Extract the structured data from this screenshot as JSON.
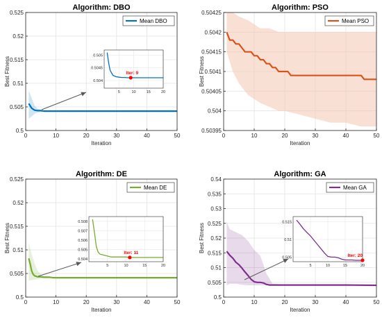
{
  "chart_data": [
    {
      "type": "line",
      "title": "Algorithm: DBO",
      "xlabel": "Iteration",
      "ylabel": "Best Fitness",
      "xlim": [
        0,
        50
      ],
      "ylim": [
        0.5,
        0.525
      ],
      "xticks": [
        0,
        10,
        20,
        30,
        40,
        50
      ],
      "yticks": [
        0.5,
        0.505,
        0.51,
        0.515,
        0.52,
        0.525
      ],
      "ytick_labels": [
        "0.5",
        "0.505",
        "0.51",
        "0.515",
        "0.52",
        "0.525"
      ],
      "legend": "top-right",
      "grid": true,
      "color": "#0072BD",
      "band_color": "#0072BD",
      "series": [
        {
          "name": "Mean DBO",
          "x": [
            1,
            2,
            3,
            4,
            5,
            6,
            7,
            8,
            9,
            10,
            12,
            15,
            20,
            25,
            30,
            35,
            40,
            45,
            50
          ],
          "y": [
            0.5057,
            0.5047,
            0.5043,
            0.5042,
            0.5042,
            0.5041,
            0.5041,
            0.5041,
            0.5041,
            0.5041,
            0.5041,
            0.5041,
            0.5041,
            0.5041,
            0.5041,
            0.5041,
            0.5041,
            0.5041,
            0.5041
          ]
        }
      ],
      "band": {
        "x": [
          1,
          2,
          3,
          4,
          5,
          6,
          8,
          10,
          20,
          30,
          40,
          50
        ],
        "lower": [
          0.5025,
          0.503,
          0.5036,
          0.5038,
          0.5039,
          0.504,
          0.504,
          0.504,
          0.504,
          0.504,
          0.504,
          0.504
        ],
        "upper": [
          0.5085,
          0.5068,
          0.5052,
          0.5046,
          0.5044,
          0.5043,
          0.5042,
          0.5042,
          0.5042,
          0.5042,
          0.5042,
          0.5042
        ]
      },
      "inset": {
        "xlim": [
          0,
          20
        ],
        "ylim": [
          0.5037,
          0.5052
        ],
        "xticks": [
          5,
          10,
          15,
          20
        ],
        "yticks": [
          0.504,
          0.5045,
          0.505
        ],
        "ytick_labels": [
          "0.504",
          "0.5045",
          "0.505"
        ],
        "x": [
          1,
          1.5,
          2,
          2.5,
          3,
          4,
          5,
          6,
          7,
          8,
          9,
          10,
          12,
          15,
          20
        ],
        "y": [
          0.5051,
          0.5047,
          0.5044,
          0.5043,
          0.5042,
          0.50415,
          0.50413,
          0.50412,
          0.50412,
          0.50411,
          0.50411,
          0.50411,
          0.50411,
          0.50411,
          0.50411
        ],
        "marker": {
          "x": 9,
          "y": 0.50411,
          "label": "Iter: 9"
        }
      }
    },
    {
      "type": "line",
      "title": "Algorithm: PSO",
      "xlabel": "Iteration",
      "ylabel": "Best Fitness",
      "xlim": [
        0,
        50
      ],
      "ylim": [
        0.50395,
        0.50425
      ],
      "xticks": [
        0,
        10,
        20,
        30,
        40,
        50
      ],
      "yticks": [
        0.50395,
        0.504,
        0.50405,
        0.5041,
        0.50415,
        0.5042,
        0.50425
      ],
      "ytick_labels": [
        "0.50395",
        "0.504",
        "0.50405",
        "0.5041",
        "0.50415",
        "0.5042",
        "0.50425"
      ],
      "legend": "top-right",
      "grid": true,
      "color": "#D95319",
      "band_color": "#F4C7B0",
      "series": [
        {
          "name": "Mean PSO",
          "x": [
            1,
            2,
            3,
            4,
            5,
            6,
            7,
            8,
            9,
            10,
            11,
            12,
            13,
            14,
            15,
            16,
            17,
            18,
            19,
            20,
            21,
            22,
            23,
            24,
            25,
            26,
            27,
            28,
            29,
            30,
            32,
            35,
            40,
            45,
            46,
            47,
            50
          ],
          "y": [
            0.5042,
            0.50418,
            0.50418,
            0.50417,
            0.50417,
            0.50416,
            0.50415,
            0.50415,
            0.50415,
            0.50414,
            0.50414,
            0.50413,
            0.50413,
            0.50412,
            0.50412,
            0.50411,
            0.50411,
            0.5041,
            0.5041,
            0.5041,
            0.5041,
            0.50409,
            0.50409,
            0.50409,
            0.50409,
            0.50409,
            0.50409,
            0.50409,
            0.50409,
            0.50409,
            0.50409,
            0.50409,
            0.50409,
            0.50409,
            0.50408,
            0.50408,
            0.50408
          ]
        }
      ],
      "band": {
        "x": [
          1,
          3,
          5,
          8,
          10,
          12,
          15,
          18,
          20,
          25,
          30,
          35,
          40,
          45,
          50
        ],
        "lower": [
          0.50415,
          0.5041,
          0.50407,
          0.50404,
          0.50403,
          0.50402,
          0.50401,
          0.504,
          0.504,
          0.50399,
          0.50398,
          0.50397,
          0.50397,
          0.50396,
          0.50396
        ],
        "upper": [
          0.50425,
          0.50425,
          0.50424,
          0.50423,
          0.50422,
          0.50421,
          0.50421,
          0.5042,
          0.5042,
          0.5042,
          0.5042,
          0.5042,
          0.5042,
          0.5042,
          0.5042
        ]
      }
    },
    {
      "type": "line",
      "title": "Algorithm: DE",
      "xlabel": "Iteration",
      "ylabel": "Best Fitness",
      "xlim": [
        0,
        50
      ],
      "ylim": [
        0.5,
        0.525
      ],
      "xticks": [
        0,
        10,
        20,
        30,
        40,
        50
      ],
      "yticks": [
        0.5,
        0.505,
        0.51,
        0.515,
        0.52,
        0.525
      ],
      "ytick_labels": [
        "0.5",
        "0.505",
        "0.51",
        "0.515",
        "0.52",
        "0.525"
      ],
      "legend": "top-right",
      "grid": true,
      "color": "#77AC30",
      "band_color": "#77AC30",
      "series": [
        {
          "name": "Mean DE",
          "x": [
            1,
            1.5,
            2,
            2.5,
            3,
            4,
            5,
            6,
            7,
            8,
            9,
            10,
            11,
            12,
            15,
            20,
            30,
            40,
            50
          ],
          "y": [
            0.5082,
            0.507,
            0.5055,
            0.5048,
            0.5045,
            0.5043,
            0.5043,
            0.5042,
            0.5042,
            0.5042,
            0.5041,
            0.5041,
            0.5041,
            0.5041,
            0.5041,
            0.5041,
            0.5041,
            0.5041,
            0.5041
          ]
        }
      ],
      "band": {
        "x": [
          1,
          2,
          3,
          4,
          5,
          6,
          8,
          10,
          12,
          15,
          20,
          30,
          40,
          50
        ],
        "lower": [
          0.5035,
          0.5036,
          0.5037,
          0.5038,
          0.5039,
          0.504,
          0.504,
          0.504,
          0.504,
          0.504,
          0.504,
          0.504,
          0.504,
          0.504
        ],
        "upper": [
          0.5115,
          0.509,
          0.507,
          0.5055,
          0.5048,
          0.5045,
          0.5043,
          0.5042,
          0.5042,
          0.5042,
          0.5042,
          0.5042,
          0.5042,
          0.5042
        ]
      },
      "inset": {
        "xlim": [
          0,
          20
        ],
        "ylim": [
          0.5037,
          0.5085
        ],
        "xticks": [
          5,
          10,
          15,
          20
        ],
        "yticks": [
          0.504,
          0.505,
          0.506,
          0.507,
          0.508
        ],
        "ytick_labels": [
          "0.504",
          "0.505",
          "0.506",
          "0.507",
          "0.508"
        ],
        "x": [
          1,
          1.5,
          2,
          2.5,
          3,
          4,
          5,
          6,
          7,
          8,
          9,
          10,
          11,
          12,
          14,
          16,
          18,
          20
        ],
        "y": [
          0.5082,
          0.5068,
          0.5053,
          0.5047,
          0.5045,
          0.5044,
          0.5043,
          0.5042,
          0.5042,
          0.5042,
          0.5042,
          0.5042,
          0.50415,
          0.50415,
          0.50415,
          0.50415,
          0.50415,
          0.50415
        ],
        "marker": {
          "x": 11,
          "y": 0.50415,
          "label": "Iter: 11"
        }
      }
    },
    {
      "type": "line",
      "title": "Algorithm: GA",
      "xlabel": "Iteration",
      "ylabel": "Best Fitness",
      "xlim": [
        0,
        50
      ],
      "ylim": [
        0.5,
        0.54
      ],
      "xticks": [
        0,
        10,
        20,
        30,
        40,
        50
      ],
      "yticks": [
        0.5,
        0.505,
        0.51,
        0.515,
        0.52,
        0.525,
        0.53,
        0.535,
        0.54
      ],
      "ytick_labels": [
        "0.5",
        "0.505",
        "0.51",
        "0.515",
        "0.52",
        "0.525",
        "0.53",
        "0.535",
        "0.54"
      ],
      "legend": "top-right",
      "grid": true,
      "color": "#7E2F8E",
      "band_color": "#7E2F8E",
      "series": [
        {
          "name": "Mean GA",
          "x": [
            1,
            2,
            3,
            4,
            5,
            6,
            7,
            8,
            9,
            10,
            11,
            12,
            13,
            14,
            15,
            16,
            20,
            30,
            40,
            50
          ],
          "y": [
            0.5155,
            0.5142,
            0.5132,
            0.5118,
            0.511,
            0.5098,
            0.5085,
            0.5073,
            0.506,
            0.5052,
            0.505,
            0.505,
            0.5048,
            0.5043,
            0.5041,
            0.5041,
            0.5041,
            0.5041,
            0.5041,
            0.504
          ]
        }
      ],
      "band": {
        "x": [
          1,
          2,
          4,
          6,
          8,
          10,
          12,
          14,
          16,
          20,
          30,
          40,
          50
        ],
        "lower": [
          0.504,
          0.5045,
          0.5045,
          0.5042,
          0.504,
          0.504,
          0.504,
          0.504,
          0.504,
          0.504,
          0.504,
          0.504,
          0.5039
        ],
        "upper": [
          0.5255,
          0.523,
          0.522,
          0.521,
          0.519,
          0.516,
          0.514,
          0.508,
          0.5045,
          0.5043,
          0.5042,
          0.5042,
          0.5041
        ]
      },
      "inset": {
        "xlim": [
          0,
          20
        ],
        "ylim": [
          0.5037,
          0.5165
        ],
        "xticks": [
          5,
          10,
          15,
          20
        ],
        "yticks": [
          0.505,
          0.51,
          0.515
        ],
        "ytick_labels": [
          "0.505",
          "0.51",
          "0.515"
        ],
        "x": [
          1,
          2,
          3,
          4,
          5,
          6,
          7,
          8,
          9,
          10,
          11,
          12,
          13,
          14,
          15,
          16,
          17,
          18,
          19,
          20
        ],
        "y": [
          0.5155,
          0.5143,
          0.513,
          0.512,
          0.511,
          0.5098,
          0.5086,
          0.5074,
          0.5062,
          0.5052,
          0.505,
          0.505,
          0.5048,
          0.5044,
          0.5042,
          0.5042,
          0.5042,
          0.5041,
          0.5041,
          0.5041
        ],
        "marker": {
          "x": 20,
          "y": 0.5041,
          "label": "Iter: 20"
        }
      }
    }
  ]
}
